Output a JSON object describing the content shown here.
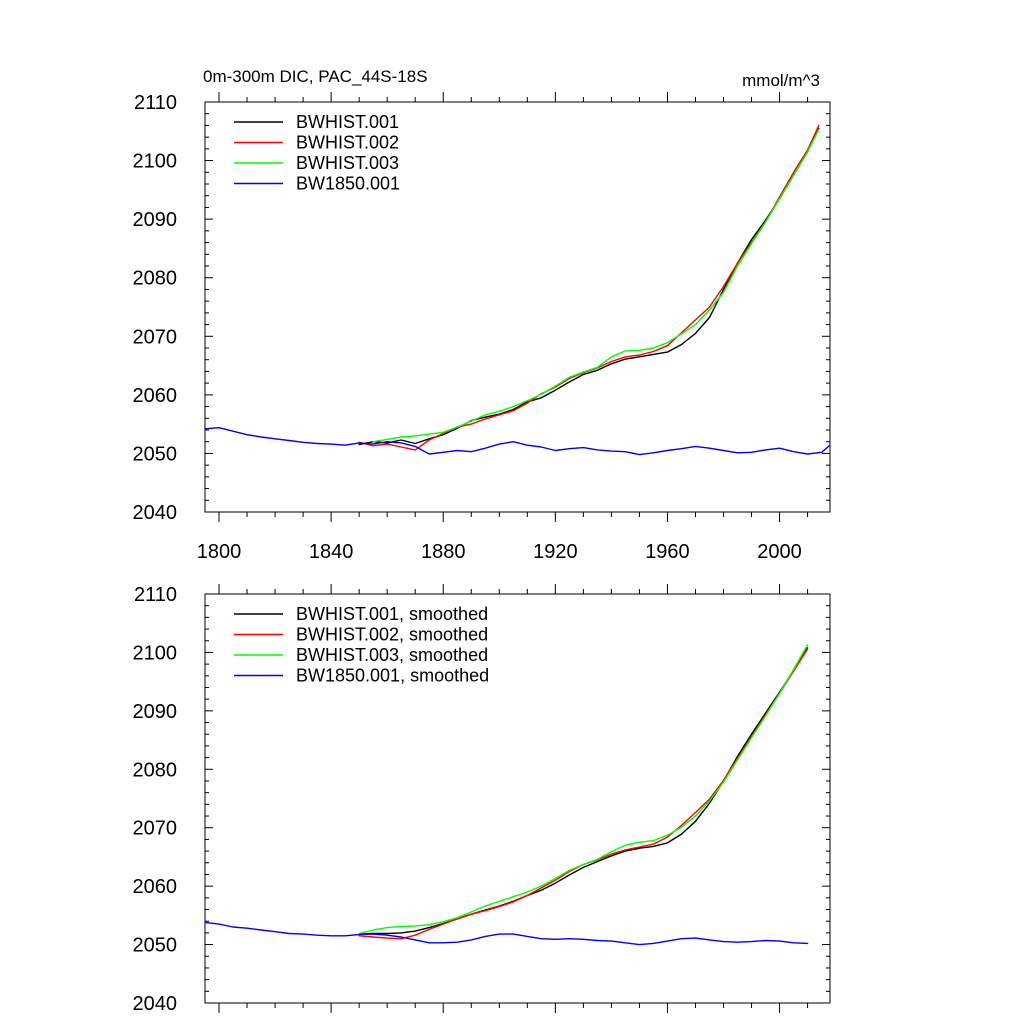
{
  "page": {
    "title_left": "0m-300m DIC, PAC_44S-18S",
    "title_right": "mmol/m^3"
  },
  "chart_data": [
    {
      "type": "line",
      "xlim": [
        1795,
        2018
      ],
      "ylim": [
        2040,
        2110
      ],
      "yticks": [
        2040,
        2050,
        2060,
        2070,
        2080,
        2090,
        2100,
        2110
      ],
      "xticks": [
        1800,
        1840,
        1880,
        1920,
        1960,
        2000
      ],
      "show_xtick_labels": true,
      "grid": false,
      "legend_position": "top-left",
      "series": [
        {
          "name": "BWHIST.001",
          "color": "#000000",
          "x": [
            1850,
            1855,
            1860,
            1865,
            1870,
            1875,
            1880,
            1885,
            1890,
            1895,
            1900,
            1905,
            1910,
            1915,
            1920,
            1925,
            1930,
            1935,
            1940,
            1945,
            1950,
            1955,
            1960,
            1965,
            1970,
            1975,
            1980,
            1985,
            1990,
            1995,
            2000,
            2005,
            2010,
            2014
          ],
          "y": [
            2051.5,
            2052.0,
            2051.8,
            2052.3,
            2051.7,
            2052.5,
            2053.2,
            2054.3,
            2055.6,
            2056.2,
            2056.7,
            2057.5,
            2058.8,
            2059.5,
            2060.8,
            2062.2,
            2063.5,
            2064.2,
            2065.3,
            2066.1,
            2066.5,
            2066.9,
            2067.3,
            2068.6,
            2070.5,
            2073.2,
            2078.0,
            2082.5,
            2086.5,
            2089.8,
            2093.5,
            2097.5,
            2101.5,
            2105.5
          ]
        },
        {
          "name": "BWHIST.002",
          "color": "#ff0000",
          "x": [
            1850,
            1855,
            1860,
            1865,
            1870,
            1875,
            1880,
            1885,
            1890,
            1895,
            1900,
            1905,
            1910,
            1915,
            1920,
            1925,
            1930,
            1935,
            1940,
            1945,
            1950,
            1955,
            1960,
            1965,
            1970,
            1975,
            1980,
            1985,
            1990,
            1995,
            2000,
            2005,
            2010,
            2014
          ],
          "y": [
            2051.9,
            2051.3,
            2051.6,
            2051.1,
            2050.6,
            2052.3,
            2053.4,
            2054.5,
            2055.0,
            2055.9,
            2056.6,
            2057.3,
            2058.6,
            2060.2,
            2061.3,
            2062.8,
            2063.8,
            2064.6,
            2065.7,
            2066.5,
            2066.8,
            2067.4,
            2068.4,
            2070.6,
            2072.8,
            2075.0,
            2078.5,
            2082.5,
            2086.0,
            2089.5,
            2093.8,
            2098.0,
            2101.8,
            2106.0
          ]
        },
        {
          "name": "BWHIST.003",
          "color": "#00ff00",
          "x": [
            1855,
            1860,
            1865,
            1870,
            1875,
            1880,
            1885,
            1890,
            1895,
            1900,
            1905,
            1910,
            1915,
            1920,
            1925,
            1930,
            1935,
            1940,
            1945,
            1950,
            1955,
            1960,
            1965,
            1970,
            1975,
            1980,
            1985,
            1990,
            1995,
            2000,
            2005,
            2010,
            2014
          ],
          "y": [
            2052.0,
            2052.4,
            2052.8,
            2053.0,
            2053.3,
            2053.6,
            2054.5,
            2055.5,
            2056.6,
            2057.2,
            2058.0,
            2059.0,
            2060.1,
            2061.5,
            2063.0,
            2063.9,
            2064.7,
            2066.5,
            2067.5,
            2067.6,
            2068.0,
            2068.9,
            2070.4,
            2072.0,
            2074.5,
            2077.5,
            2082.0,
            2085.8,
            2089.5,
            2093.5,
            2097.5,
            2101.5,
            2105.3
          ]
        },
        {
          "name": "BW1850.001",
          "color": "#0000ff",
          "x": [
            1795,
            1800,
            1805,
            1810,
            1815,
            1820,
            1825,
            1830,
            1835,
            1840,
            1845,
            1850,
            1855,
            1860,
            1865,
            1870,
            1875,
            1880,
            1885,
            1890,
            1895,
            1900,
            1905,
            1910,
            1915,
            1920,
            1925,
            1930,
            1935,
            1940,
            1945,
            1950,
            1955,
            1960,
            1965,
            1970,
            1975,
            1980,
            1985,
            1990,
            1995,
            2000,
            2005,
            2010,
            2015,
            2018
          ],
          "y": [
            2054.2,
            2054.4,
            2053.8,
            2053.2,
            2052.8,
            2052.5,
            2052.2,
            2051.9,
            2051.7,
            2051.6,
            2051.4,
            2051.8,
            2051.6,
            2052.0,
            2051.8,
            2051.2,
            2049.9,
            2050.2,
            2050.5,
            2050.3,
            2050.9,
            2051.6,
            2052.0,
            2051.4,
            2051.1,
            2050.5,
            2050.8,
            2051.0,
            2050.6,
            2050.4,
            2050.3,
            2049.8,
            2050.1,
            2050.5,
            2050.8,
            2051.2,
            2050.9,
            2050.5,
            2050.1,
            2050.2,
            2050.6,
            2050.9,
            2050.3,
            2049.9,
            2050.2,
            2051.4
          ]
        }
      ]
    },
    {
      "type": "line",
      "xlim": [
        1795,
        2018
      ],
      "ylim": [
        2040,
        2110
      ],
      "yticks": [
        2040,
        2050,
        2060,
        2070,
        2080,
        2090,
        2100,
        2110
      ],
      "xticks": [
        1800,
        1840,
        1880,
        1920,
        1960,
        2000
      ],
      "show_xtick_labels": false,
      "grid": false,
      "legend_position": "top-left",
      "series": [
        {
          "name": "BWHIST.001, smoothed",
          "color": "#000000",
          "x": [
            1850,
            1855,
            1860,
            1865,
            1870,
            1875,
            1880,
            1885,
            1890,
            1895,
            1900,
            1905,
            1910,
            1915,
            1920,
            1925,
            1930,
            1935,
            1940,
            1945,
            1950,
            1955,
            1960,
            1965,
            1970,
            1975,
            1980,
            1985,
            1990,
            1995,
            2000,
            2005,
            2010
          ],
          "y": [
            2051.8,
            2051.9,
            2051.9,
            2052.0,
            2052.3,
            2052.9,
            2053.6,
            2054.4,
            2055.2,
            2055.9,
            2056.6,
            2057.4,
            2058.4,
            2059.3,
            2060.5,
            2061.9,
            2063.2,
            2064.2,
            2065.2,
            2066.0,
            2066.5,
            2066.8,
            2067.4,
            2068.9,
            2071.1,
            2074.2,
            2078.0,
            2082.2,
            2086.0,
            2089.6,
            2093.2,
            2096.9,
            2100.8
          ]
        },
        {
          "name": "BWHIST.002, smoothed",
          "color": "#ff0000",
          "x": [
            1850,
            1855,
            1860,
            1865,
            1870,
            1875,
            1880,
            1885,
            1890,
            1895,
            1900,
            1905,
            1910,
            1915,
            1920,
            1925,
            1930,
            1935,
            1940,
            1945,
            1950,
            1955,
            1960,
            1965,
            1970,
            1975,
            1980,
            1985,
            1990,
            1995,
            2000,
            2005,
            2010
          ],
          "y": [
            2051.5,
            2051.3,
            2051.1,
            2051.0,
            2051.6,
            2052.6,
            2053.5,
            2054.4,
            2055.2,
            2055.8,
            2056.5,
            2057.3,
            2058.4,
            2059.7,
            2061.0,
            2062.5,
            2063.7,
            2064.5,
            2065.5,
            2066.2,
            2066.7,
            2067.2,
            2068.4,
            2070.4,
            2072.6,
            2074.9,
            2078.1,
            2081.9,
            2085.6,
            2089.3,
            2093.0,
            2096.8,
            2100.6
          ]
        },
        {
          "name": "BWHIST.003, smoothed",
          "color": "#00ff00",
          "x": [
            1850,
            1855,
            1860,
            1865,
            1870,
            1875,
            1880,
            1885,
            1890,
            1895,
            1900,
            1905,
            1910,
            1915,
            1920,
            1925,
            1930,
            1935,
            1940,
            1945,
            1950,
            1955,
            1960,
            1965,
            1970,
            1975,
            1980,
            1985,
            1990,
            1995,
            2000,
            2005,
            2010
          ],
          "y": [
            2051.9,
            2052.5,
            2052.9,
            2053.1,
            2053.2,
            2053.4,
            2053.9,
            2054.6,
            2055.6,
            2056.6,
            2057.4,
            2058.2,
            2059.0,
            2060.0,
            2061.3,
            2062.7,
            2063.7,
            2064.6,
            2065.9,
            2067.0,
            2067.5,
            2067.8,
            2068.7,
            2070.1,
            2072.0,
            2074.6,
            2077.8,
            2081.6,
            2085.4,
            2089.1,
            2093.0,
            2097.1,
            2101.3
          ]
        },
        {
          "name": "BW1850.001, smoothed",
          "color": "#0000ff",
          "x": [
            1795,
            1800,
            1805,
            1810,
            1815,
            1820,
            1825,
            1830,
            1835,
            1840,
            1845,
            1850,
            1855,
            1860,
            1865,
            1870,
            1875,
            1880,
            1885,
            1890,
            1895,
            1900,
            1905,
            1910,
            1915,
            1920,
            1925,
            1930,
            1935,
            1940,
            1945,
            1950,
            1955,
            1960,
            1965,
            1970,
            1975,
            1980,
            1985,
            1990,
            1995,
            2000,
            2005,
            2010
          ],
          "y": [
            2053.8,
            2053.5,
            2053.0,
            2052.8,
            2052.5,
            2052.2,
            2051.9,
            2051.8,
            2051.6,
            2051.5,
            2051.5,
            2051.7,
            2051.8,
            2051.6,
            2051.3,
            2050.8,
            2050.3,
            2050.3,
            2050.4,
            2050.8,
            2051.4,
            2051.8,
            2051.8,
            2051.4,
            2051.0,
            2050.9,
            2051.0,
            2050.9,
            2050.7,
            2050.6,
            2050.3,
            2050.0,
            2050.2,
            2050.6,
            2051.0,
            2051.1,
            2050.8,
            2050.5,
            2050.4,
            2050.5,
            2050.7,
            2050.6,
            2050.3,
            2050.2
          ]
        }
      ]
    }
  ]
}
